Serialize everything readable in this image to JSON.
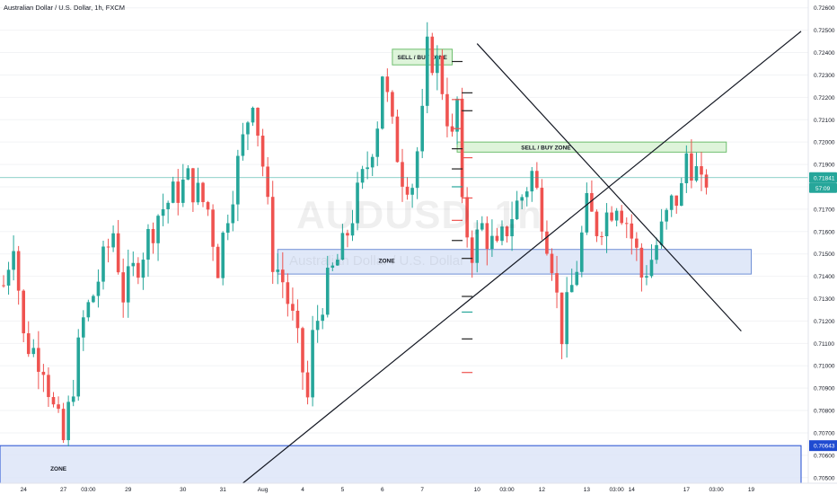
{
  "chart_data": {
    "type": "candlestick",
    "title": "Australian Dollar / U.S. Dollar, 1h, FXCM",
    "watermark_symbol": "AUDUSD, 1h",
    "watermark_description": "Australian Dollar / U.S. Dollar",
    "ylim": [
      0.70475,
      0.72635
    ],
    "y_ticks": [
      "0.72600",
      "0.72500",
      "0.72400",
      "0.72300",
      "0.72200",
      "0.72100",
      "0.72000",
      "0.71900",
      "0.71800",
      "0.71700",
      "0.71600",
      "0.71500",
      "0.71400",
      "0.71300",
      "0.71200",
      "0.71100",
      "0.71000",
      "0.70900",
      "0.70800",
      "0.70700",
      "0.70600",
      "0.70500"
    ],
    "x_ticks": [
      {
        "label": "24",
        "bar": 4
      },
      {
        "label": "27",
        "bar": 12
      },
      {
        "label": "03:00",
        "bar": 17
      },
      {
        "label": "29",
        "bar": 25
      },
      {
        "label": "30",
        "bar": 36
      },
      {
        "label": "31",
        "bar": 44
      },
      {
        "label": "Aug",
        "bar": 52
      },
      {
        "label": "4",
        "bar": 60
      },
      {
        "label": "5",
        "bar": 68
      },
      {
        "label": "6",
        "bar": 76
      },
      {
        "label": "7",
        "bar": 84
      },
      {
        "label": "10",
        "bar": 95
      },
      {
        "label": "03:00",
        "bar": 101
      },
      {
        "label": "12",
        "bar": 108
      },
      {
        "label": "13",
        "bar": 117
      },
      {
        "label": "03:00",
        "bar": 123
      },
      {
        "label": "14",
        "bar": 126
      },
      {
        "label": "17",
        "bar": 137
      },
      {
        "label": "03:00",
        "bar": 143
      },
      {
        "label": "19",
        "bar": 150
      }
    ],
    "bars_anchor": [
      {
        "bar": 0,
        "close": 0.7136
      },
      {
        "bar": 2,
        "close": 0.7158
      },
      {
        "bar": 4,
        "close": 0.7112
      },
      {
        "bar": 8,
        "close": 0.7102
      },
      {
        "bar": 10,
        "close": 0.708
      },
      {
        "bar": 12,
        "close": 0.7066
      },
      {
        "bar": 14,
        "close": 0.7093
      },
      {
        "bar": 16,
        "close": 0.712
      },
      {
        "bar": 18,
        "close": 0.7132
      },
      {
        "bar": 22,
        "close": 0.716
      },
      {
        "bar": 24,
        "close": 0.7132
      },
      {
        "bar": 28,
        "close": 0.7152
      },
      {
        "bar": 31,
        "close": 0.7168
      },
      {
        "bar": 34,
        "close": 0.7176
      },
      {
        "bar": 37,
        "close": 0.7183
      },
      {
        "bar": 41,
        "close": 0.717
      },
      {
        "bar": 43,
        "close": 0.7145
      },
      {
        "bar": 45,
        "close": 0.717
      },
      {
        "bar": 48,
        "close": 0.72
      },
      {
        "bar": 50,
        "close": 0.7222
      },
      {
        "bar": 52,
        "close": 0.719
      },
      {
        "bar": 54,
        "close": 0.7148
      },
      {
        "bar": 56,
        "close": 0.7138
      },
      {
        "bar": 58,
        "close": 0.712
      },
      {
        "bar": 60,
        "close": 0.7098
      },
      {
        "bar": 61,
        "close": 0.7085
      },
      {
        "bar": 62,
        "close": 0.7112
      },
      {
        "bar": 64,
        "close": 0.713
      },
      {
        "bar": 66,
        "close": 0.7142
      },
      {
        "bar": 68,
        "close": 0.7152
      },
      {
        "bar": 70,
        "close": 0.7168
      },
      {
        "bar": 73,
        "close": 0.719
      },
      {
        "bar": 75,
        "close": 0.721
      },
      {
        "bar": 76,
        "close": 0.7232
      },
      {
        "bar": 78,
        "close": 0.7205
      },
      {
        "bar": 80,
        "close": 0.7186
      },
      {
        "bar": 82,
        "close": 0.7182
      },
      {
        "bar": 84,
        "close": 0.721
      },
      {
        "bar": 85,
        "close": 0.724
      },
      {
        "bar": 87,
        "close": 0.7235
      },
      {
        "bar": 88,
        "close": 0.7225
      },
      {
        "bar": 90,
        "close": 0.72
      },
      {
        "bar": 91,
        "close": 0.7218
      },
      {
        "bar": 92,
        "close": 0.7168
      },
      {
        "bar": 94,
        "close": 0.7152
      },
      {
        "bar": 96,
        "close": 0.7162
      },
      {
        "bar": 99,
        "close": 0.715
      },
      {
        "bar": 102,
        "close": 0.7168
      },
      {
        "bar": 104,
        "close": 0.7176
      },
      {
        "bar": 106,
        "close": 0.7186
      },
      {
        "bar": 108,
        "close": 0.7168
      },
      {
        "bar": 110,
        "close": 0.7148
      },
      {
        "bar": 111,
        "close": 0.713
      },
      {
        "bar": 112,
        "close": 0.7115
      },
      {
        "bar": 113,
        "close": 0.7125
      },
      {
        "bar": 115,
        "close": 0.7145
      },
      {
        "bar": 117,
        "close": 0.717
      },
      {
        "bar": 119,
        "close": 0.7162
      },
      {
        "bar": 121,
        "close": 0.7168
      },
      {
        "bar": 123,
        "close": 0.7175
      },
      {
        "bar": 125,
        "close": 0.7165
      },
      {
        "bar": 127,
        "close": 0.715
      },
      {
        "bar": 128,
        "close": 0.714
      },
      {
        "bar": 130,
        "close": 0.7148
      },
      {
        "bar": 132,
        "close": 0.716
      },
      {
        "bar": 134,
        "close": 0.7172
      },
      {
        "bar": 136,
        "close": 0.7178
      },
      {
        "bar": 137,
        "close": 0.7195
      },
      {
        "bar": 139,
        "close": 0.7186
      },
      {
        "bar": 140,
        "close": 0.7178
      },
      {
        "bar": 141,
        "close": 0.7184
      }
    ],
    "total_bars": 142,
    "zones": [
      {
        "label": "SELL / BUY ZONE",
        "bar_start": 78,
        "bar_end": 90,
        "price_top": 0.72415,
        "price_bottom": 0.72345,
        "fill": "#d8f2d3",
        "stroke": "#6fbf6f"
      },
      {
        "label": "SELL / BUY ZONE",
        "bar_start": 91,
        "bar_end": 145,
        "price_top": 0.72,
        "price_bottom": 0.71955,
        "fill": "#d8f2d3",
        "stroke": "#6fbf6f"
      },
      {
        "label": "ZONE",
        "bar_start": 55,
        "bar_end": 150,
        "price_top": 0.7152,
        "price_bottom": 0.7141,
        "fill": "#dbe4f7",
        "stroke": "#6f8fd6"
      },
      {
        "label": "ZONE",
        "bar_start": -2,
        "bar_end": 160,
        "price_top": 0.70643,
        "price_bottom": 0.70475,
        "fill": "#dde5f8",
        "stroke": "#1f4bd1"
      }
    ],
    "trendlines": [
      {
        "bar1": 48,
        "price1": 0.70475,
        "bar2": 160,
        "price2": 0.72495
      },
      {
        "bar1": 95,
        "price1": 0.7244,
        "bar2": 148,
        "price2": 0.71155
      }
    ],
    "horizontal_line": {
      "price": 0.71841
    },
    "last_price": "0.71841",
    "countdown": "57:09",
    "level_label": "0.70643",
    "colors": {
      "up": "#26a69a",
      "down": "#ef5350",
      "last_price_bg": "#26a69a",
      "level_bg": "#1f4bd1",
      "axis_text": "#131722",
      "grid": "#f2f3f5"
    }
  }
}
